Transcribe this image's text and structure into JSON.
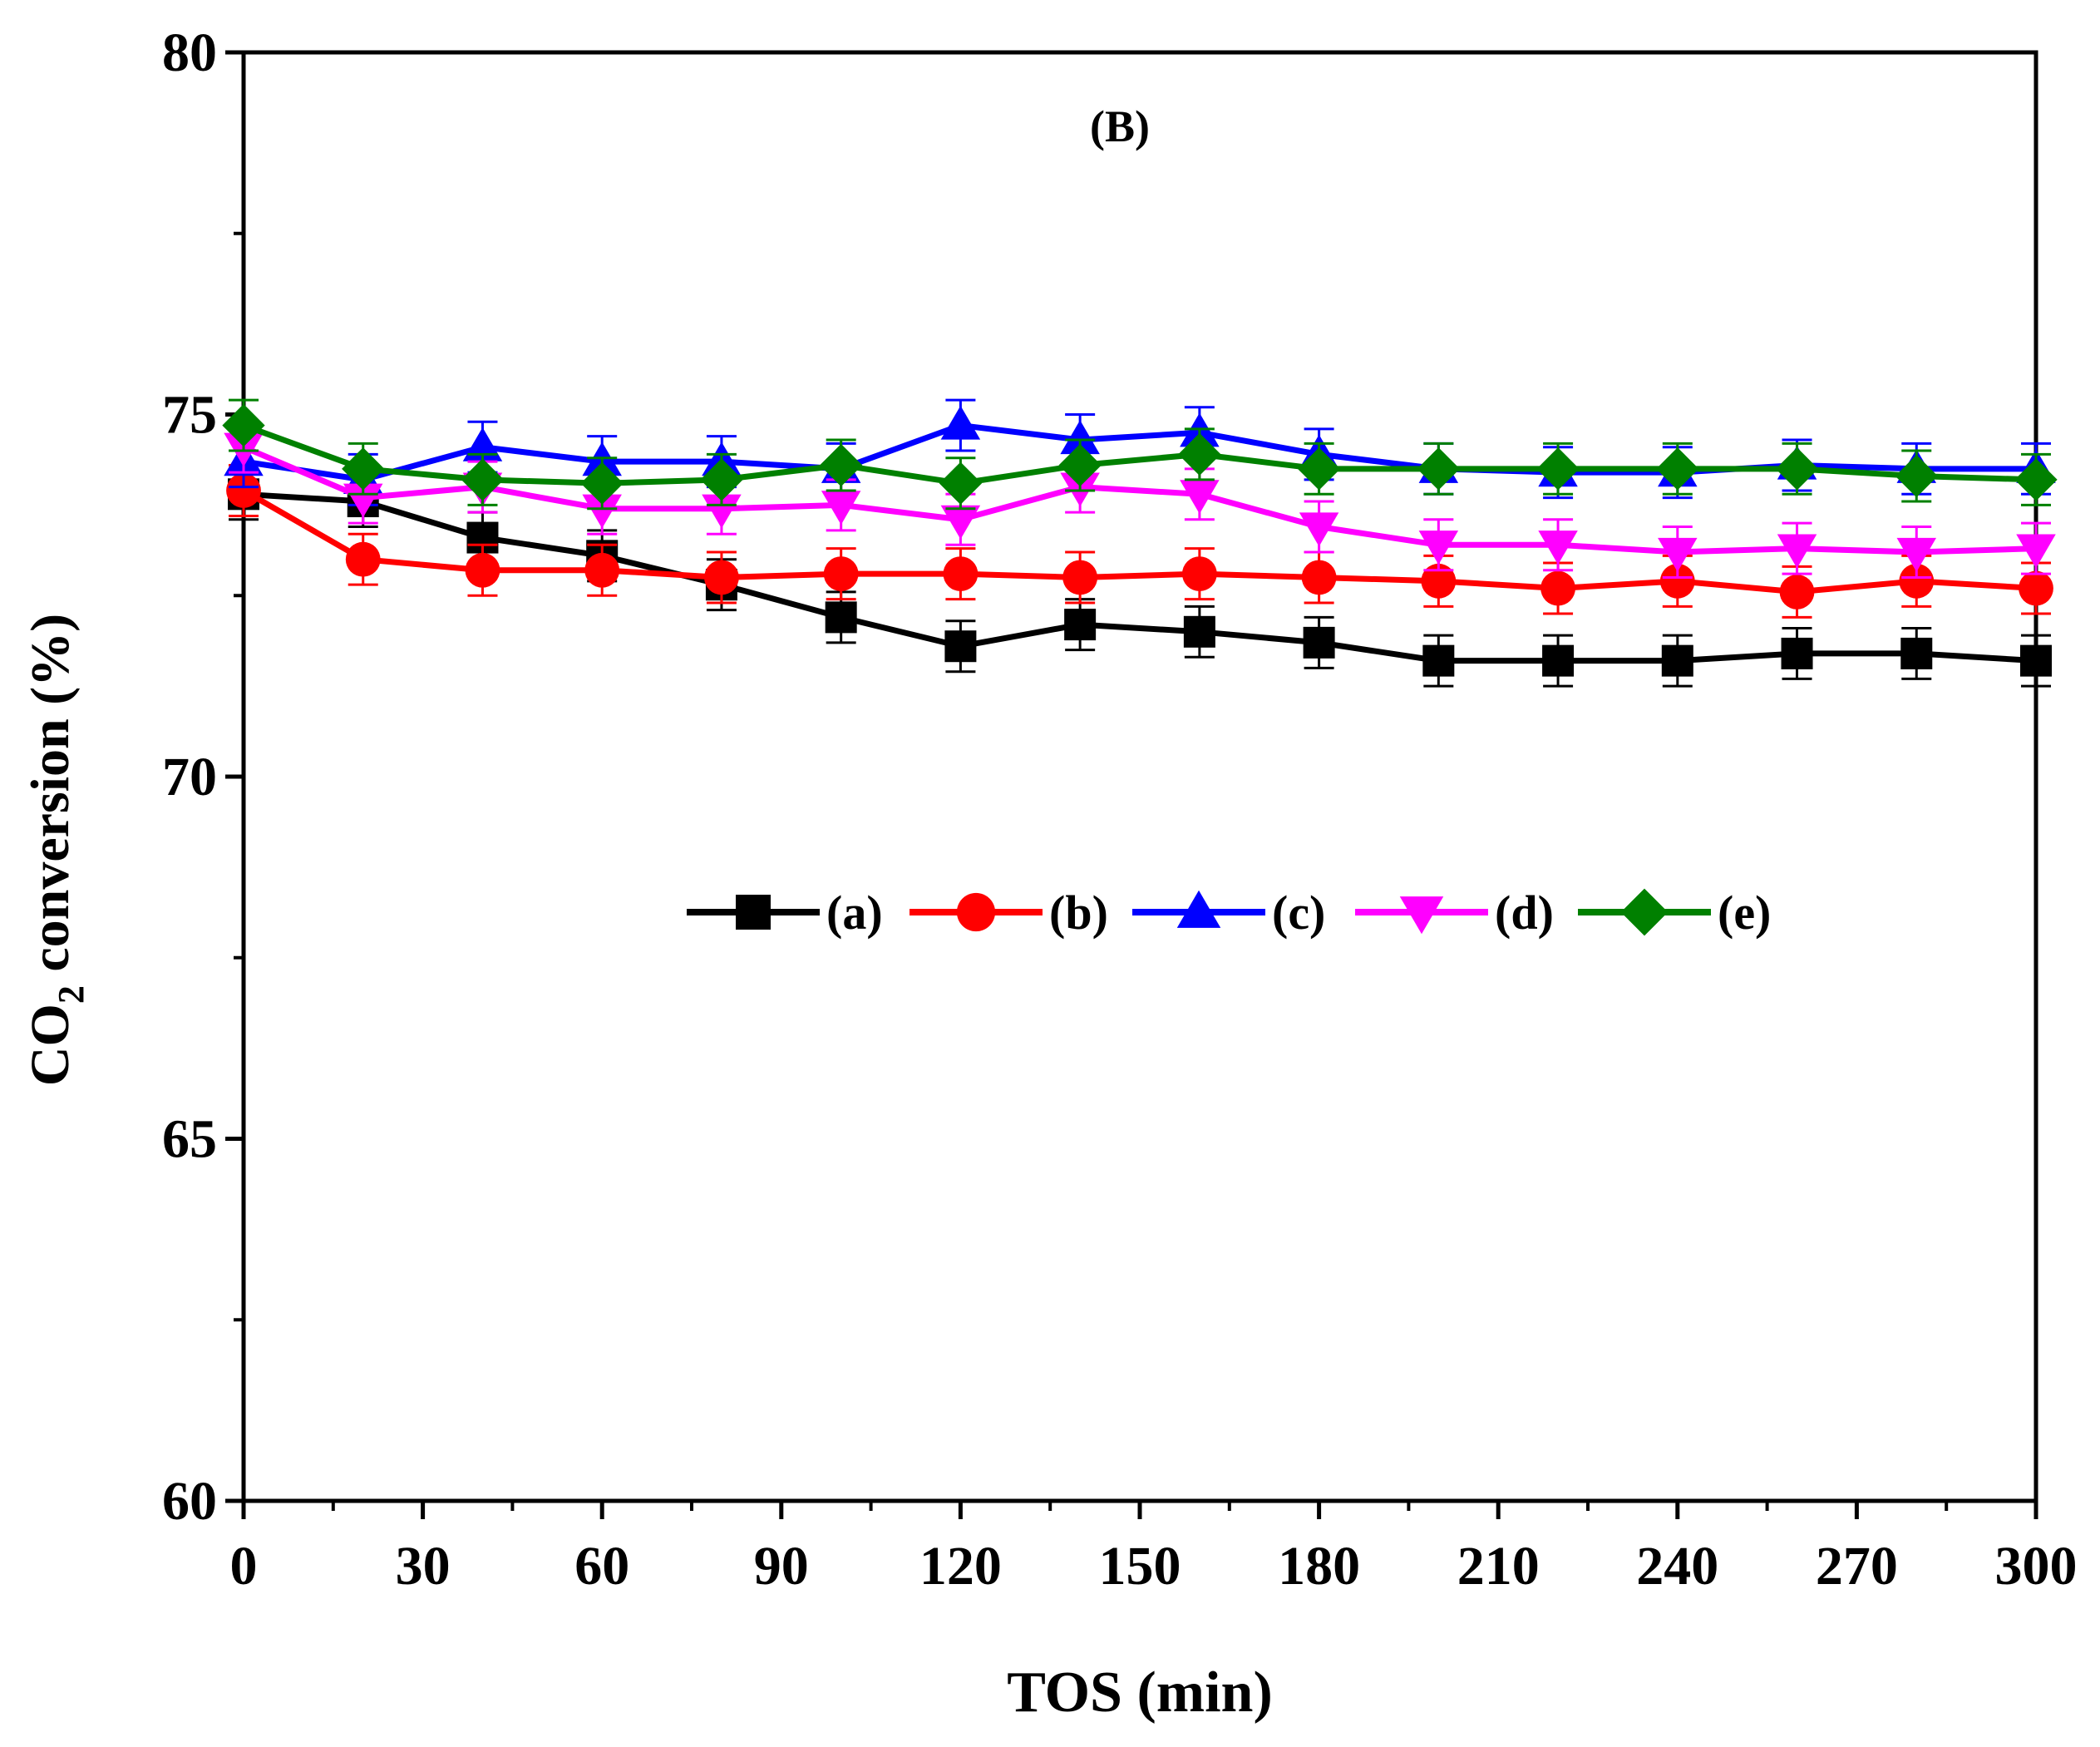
{
  "chart_data": {
    "type": "line",
    "panel_label": "(B)",
    "xlabel": "TOS (min)",
    "ylabel_main": "CO",
    "ylabel_sub": "2",
    "ylabel_rest": " conversion (%)",
    "xlim": [
      0,
      300
    ],
    "ylim": [
      60,
      80
    ],
    "xticks": [
      0,
      30,
      60,
      90,
      120,
      150,
      180,
      210,
      240,
      270,
      300
    ],
    "yticks": [
      60,
      65,
      70,
      75,
      80
    ],
    "x": [
      0,
      20,
      40,
      60,
      80,
      100,
      120,
      140,
      160,
      180,
      200,
      220,
      240,
      260,
      280,
      300
    ],
    "series": [
      {
        "name": "(a)",
        "color": "#000000",
        "marker": "square",
        "values": [
          73.9,
          73.8,
          73.3,
          73.05,
          72.65,
          72.2,
          71.8,
          72.1,
          72.0,
          71.85,
          71.6,
          71.6,
          71.6,
          71.7,
          71.7,
          71.6
        ],
        "err": 0.35
      },
      {
        "name": "(b)",
        "color": "#ff0000",
        "marker": "circle",
        "values": [
          73.95,
          73.0,
          72.85,
          72.85,
          72.75,
          72.8,
          72.8,
          72.75,
          72.8,
          72.75,
          72.7,
          72.6,
          72.7,
          72.55,
          72.7,
          72.6
        ],
        "err": 0.35
      },
      {
        "name": "(c)",
        "color": "#0000ff",
        "marker": "triangle-up",
        "values": [
          74.35,
          74.1,
          74.55,
          74.35,
          74.35,
          74.25,
          74.85,
          74.65,
          74.75,
          74.45,
          74.25,
          74.2,
          74.2,
          74.3,
          74.25,
          74.25
        ],
        "err": 0.35
      },
      {
        "name": "(d)",
        "color": "#ff00ff",
        "marker": "triangle-down",
        "values": [
          74.55,
          73.85,
          74.0,
          73.7,
          73.7,
          73.75,
          73.55,
          74.0,
          73.9,
          73.45,
          73.2,
          73.2,
          73.1,
          73.15,
          73.1,
          73.15
        ],
        "err": 0.35
      },
      {
        "name": "(e)",
        "color": "#008000",
        "marker": "diamond",
        "values": [
          74.85,
          74.25,
          74.1,
          74.05,
          74.1,
          74.3,
          74.05,
          74.3,
          74.45,
          74.25,
          74.25,
          74.25,
          74.25,
          74.25,
          74.15,
          74.1
        ],
        "err": 0.35
      }
    ],
    "legend": {
      "placement": "center",
      "orientation": "horizontal"
    },
    "grid": false
  }
}
